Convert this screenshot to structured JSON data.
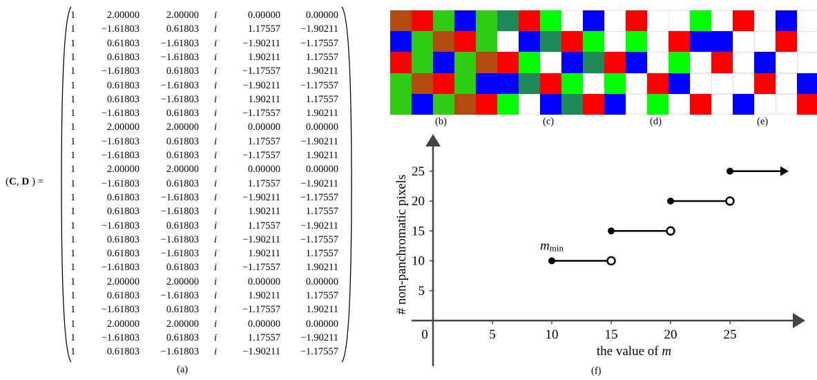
{
  "matrix_panel": {
    "label_prefix": "(",
    "label_C": "C",
    "label_sep": ", ",
    "label_D": "D",
    "label_suffix": ") =",
    "rows": [
      [
        "1",
        "2.00000",
        "2.00000",
        "i",
        "0.00000",
        "0.00000"
      ],
      [
        "1",
        "−1.61803",
        "0.61803",
        "i",
        "1.17557",
        "−1.90211"
      ],
      [
        "1",
        "0.61803",
        "−1.61803",
        "i",
        "−1.90211",
        "−1.17557"
      ],
      [
        "1",
        "0.61803",
        "−1.61803",
        "i",
        "1.90211",
        "1.17557"
      ],
      [
        "1",
        "−1.61803",
        "0.61803",
        "i",
        "−1.17557",
        "1.90211"
      ],
      [
        "1",
        "0.61803",
        "−1.61803",
        "i",
        "−1.90211",
        "−1.17557"
      ],
      [
        "1",
        "0.61803",
        "−1.61803",
        "i",
        "1.90211",
        "1.17557"
      ],
      [
        "1",
        "−1.61803",
        "0.61803",
        "i",
        "−1.17557",
        "1.90211"
      ],
      [
        "1",
        "2.00000",
        "2.00000",
        "i",
        "0.00000",
        "0.00000"
      ],
      [
        "1",
        "−1.61803",
        "0.61803",
        "i",
        "1.17557",
        "−1.90211"
      ],
      [
        "1",
        "−1.61803",
        "0.61803",
        "i",
        "−1.17557",
        "1.90211"
      ],
      [
        "1",
        "2.00000",
        "2.00000",
        "i",
        "0.00000",
        "0.00000"
      ],
      [
        "1",
        "−1.61803",
        "0.61803",
        "i",
        "1.17557",
        "−1.90211"
      ],
      [
        "1",
        "0.61803",
        "−1.61803",
        "i",
        "−1.90211",
        "−1.17557"
      ],
      [
        "1",
        "0.61803",
        "−1.61803",
        "i",
        "1.90211",
        "1.17557"
      ],
      [
        "1",
        "−1.61803",
        "0.61803",
        "i",
        "1.17557",
        "−1.90211"
      ],
      [
        "1",
        "0.61803",
        "−1.61803",
        "i",
        "−1.90211",
        "−1.17557"
      ],
      [
        "1",
        "0.61803",
        "−1.61803",
        "i",
        "1.90211",
        "1.17557"
      ],
      [
        "1",
        "−1.61803",
        "0.61803",
        "i",
        "−1.17557",
        "1.90211"
      ],
      [
        "1",
        "2.00000",
        "2.00000",
        "i",
        "0.00000",
        "0.00000"
      ],
      [
        "1",
        "0.61803",
        "−1.61803",
        "i",
        "1.90211",
        "1.17557"
      ],
      [
        "1",
        "−1.61803",
        "0.61803",
        "i",
        "−1.17557",
        "1.90211"
      ],
      [
        "1",
        "2.00000",
        "2.00000",
        "i",
        "0.00000",
        "0.00000"
      ],
      [
        "1",
        "−1.61803",
        "0.61803",
        "i",
        "1.17557",
        "−1.90211"
      ],
      [
        "1",
        "0.61803",
        "−1.61803",
        "i",
        "−1.90211",
        "−1.17557"
      ]
    ],
    "caption": "(a)"
  },
  "colors": {
    "O": "#b34a10",
    "R": "#ff0000",
    "G": "#2ecc12",
    "B": "#0000ff",
    "L": "#00ff00",
    "T": "#1e8a5a",
    "W": "#ffffff"
  },
  "patterns": [
    {
      "caption": "(b)",
      "cells": [
        [
          "O",
          "R",
          "G",
          "B",
          "G"
        ],
        [
          "B",
          "G",
          "O",
          "R",
          "G"
        ],
        [
          "R",
          "G",
          "B",
          "G",
          "O"
        ],
        [
          "G",
          "O",
          "R",
          "G",
          "B"
        ],
        [
          "G",
          "B",
          "G",
          "O",
          "R"
        ]
      ]
    },
    {
      "caption": "(c)",
      "cells": [
        [
          "T",
          "R",
          "L",
          "W",
          "B"
        ],
        [
          "W",
          "B",
          "T",
          "R",
          "L"
        ],
        [
          "R",
          "L",
          "W",
          "B",
          "T"
        ],
        [
          "B",
          "T",
          "R",
          "L",
          "W"
        ],
        [
          "L",
          "W",
          "B",
          "T",
          "R"
        ]
      ]
    },
    {
      "caption": "(d)",
      "cells": [
        [
          "W",
          "R",
          "W",
          "W",
          "L"
        ],
        [
          "W",
          "L",
          "W",
          "R",
          "B"
        ],
        [
          "R",
          "B",
          "W",
          "L",
          "W"
        ],
        [
          "L",
          "W",
          "R",
          "B",
          "W"
        ],
        [
          "B",
          "W",
          "L",
          "W",
          "R"
        ]
      ]
    },
    {
      "caption": "(e)",
      "cells": [
        [
          "W",
          "R",
          "W",
          "B",
          "W"
        ],
        [
          "B",
          "W",
          "W",
          "R",
          "W"
        ],
        [
          "R",
          "W",
          "B",
          "W",
          "W"
        ],
        [
          "W",
          "W",
          "R",
          "W",
          "B"
        ],
        [
          "W",
          "B",
          "W",
          "W",
          "R"
        ]
      ]
    }
  ],
  "chart_data": {
    "type": "step",
    "caption": "(f)",
    "xlabel": "the value of",
    "xlabel_var": "m",
    "ylabel": "# non-panchromatic pixels",
    "x_ticks": [
      "0",
      "5",
      "10",
      "15",
      "20",
      "25"
    ],
    "x_tick_values": [
      0,
      5,
      10,
      15,
      20,
      25
    ],
    "y_ticks": [
      "5",
      "10",
      "15",
      "20",
      "25"
    ],
    "y_tick_values": [
      5,
      10,
      15,
      20,
      25
    ],
    "segments": [
      {
        "x_start": 10,
        "x_end": 15,
        "y": 10,
        "start_closed": true,
        "end_closed": false
      },
      {
        "x_start": 15,
        "x_end": 20,
        "y": 15,
        "start_closed": true,
        "end_closed": false
      },
      {
        "x_start": 20,
        "x_end": 25,
        "y": 20,
        "start_closed": true,
        "end_closed": false
      },
      {
        "x_start": 25,
        "x_end": null,
        "y": 25,
        "start_closed": true,
        "end_closed": false,
        "arrow": true
      }
    ],
    "annotation": {
      "text": "m",
      "subscript": "min",
      "x": 10,
      "y": 10
    }
  }
}
